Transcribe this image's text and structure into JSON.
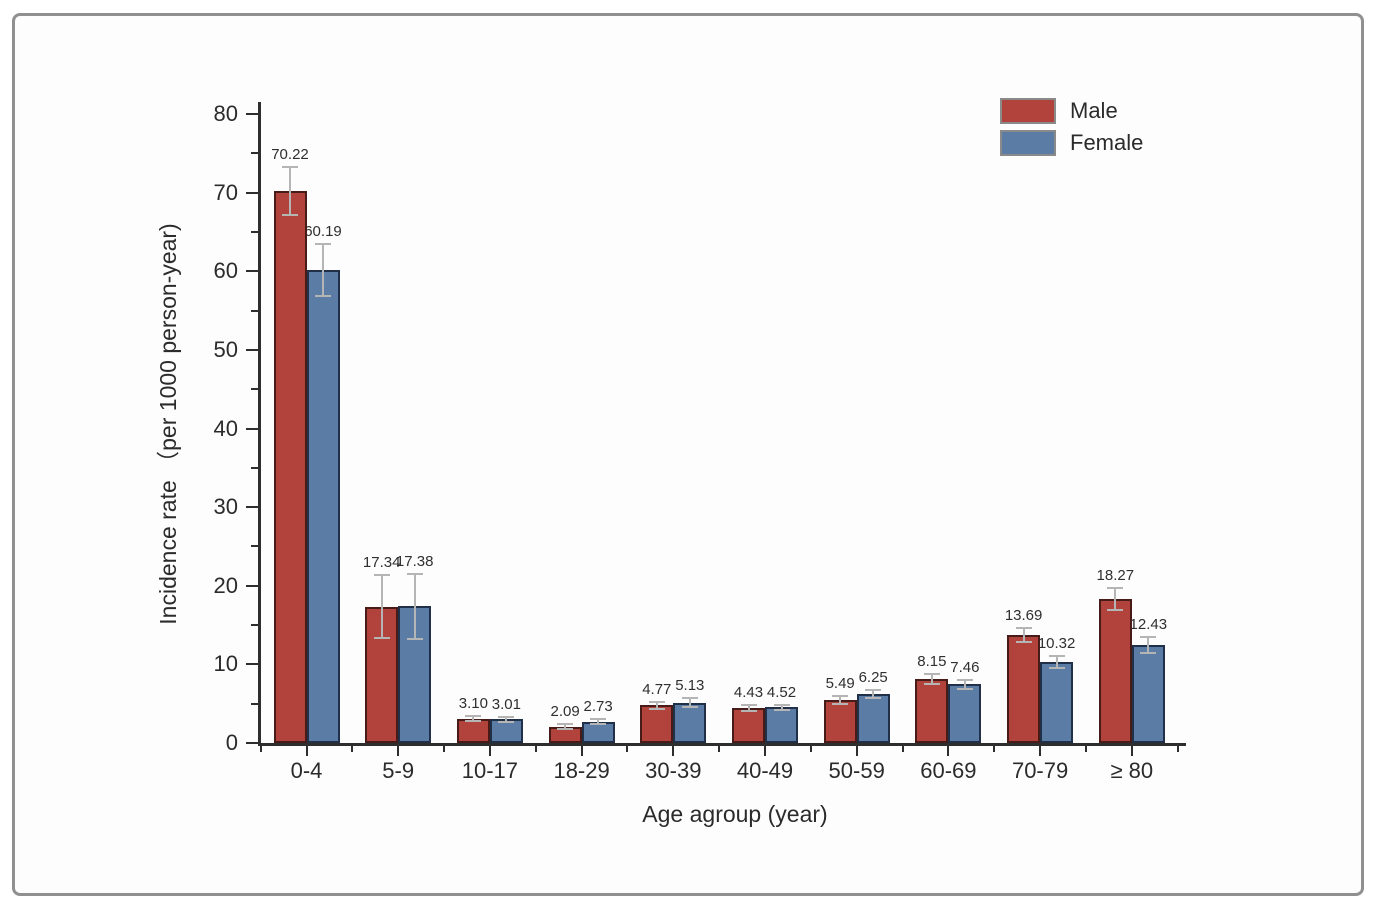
{
  "chart_data": {
    "type": "bar",
    "title": "",
    "xlabel": "Age agroup (year)",
    "ylabel": "Incidence rate （per 1000 person-year)",
    "categories": [
      "0-4",
      "5-9",
      "10-17",
      "18-29",
      "30-39",
      "40-49",
      "50-59",
      "60-69",
      "70-79",
      "≥ 80"
    ],
    "series": [
      {
        "name": "Male",
        "color": "#b2423c",
        "border_color": "#471b18",
        "values": [
          70.22,
          17.34,
          3.1,
          2.09,
          4.77,
          4.43,
          5.49,
          8.15,
          13.69,
          18.27
        ],
        "errors": [
          3.1,
          4.0,
          0.35,
          0.3,
          0.5,
          0.35,
          0.5,
          0.6,
          0.9,
          1.4
        ]
      },
      {
        "name": "Female",
        "color": "#5b7ca4",
        "border_color": "#1f3048",
        "values": [
          60.19,
          17.38,
          3.01,
          2.73,
          5.13,
          4.52,
          6.25,
          7.46,
          10.32,
          12.43
        ],
        "errors": [
          3.3,
          4.1,
          0.3,
          0.35,
          0.55,
          0.35,
          0.55,
          0.6,
          0.8,
          1.0
        ]
      }
    ],
    "ylim": [
      0,
      80
    ],
    "yticks": [
      0,
      10,
      20,
      30,
      40,
      50,
      60,
      70,
      80
    ],
    "y_minor_step": 5,
    "value_label_decimals": 2,
    "error_bar_color": "#b5b5b5",
    "axis_color": "#2e2e2e",
    "legend_position": "top-right",
    "grid": false
  }
}
